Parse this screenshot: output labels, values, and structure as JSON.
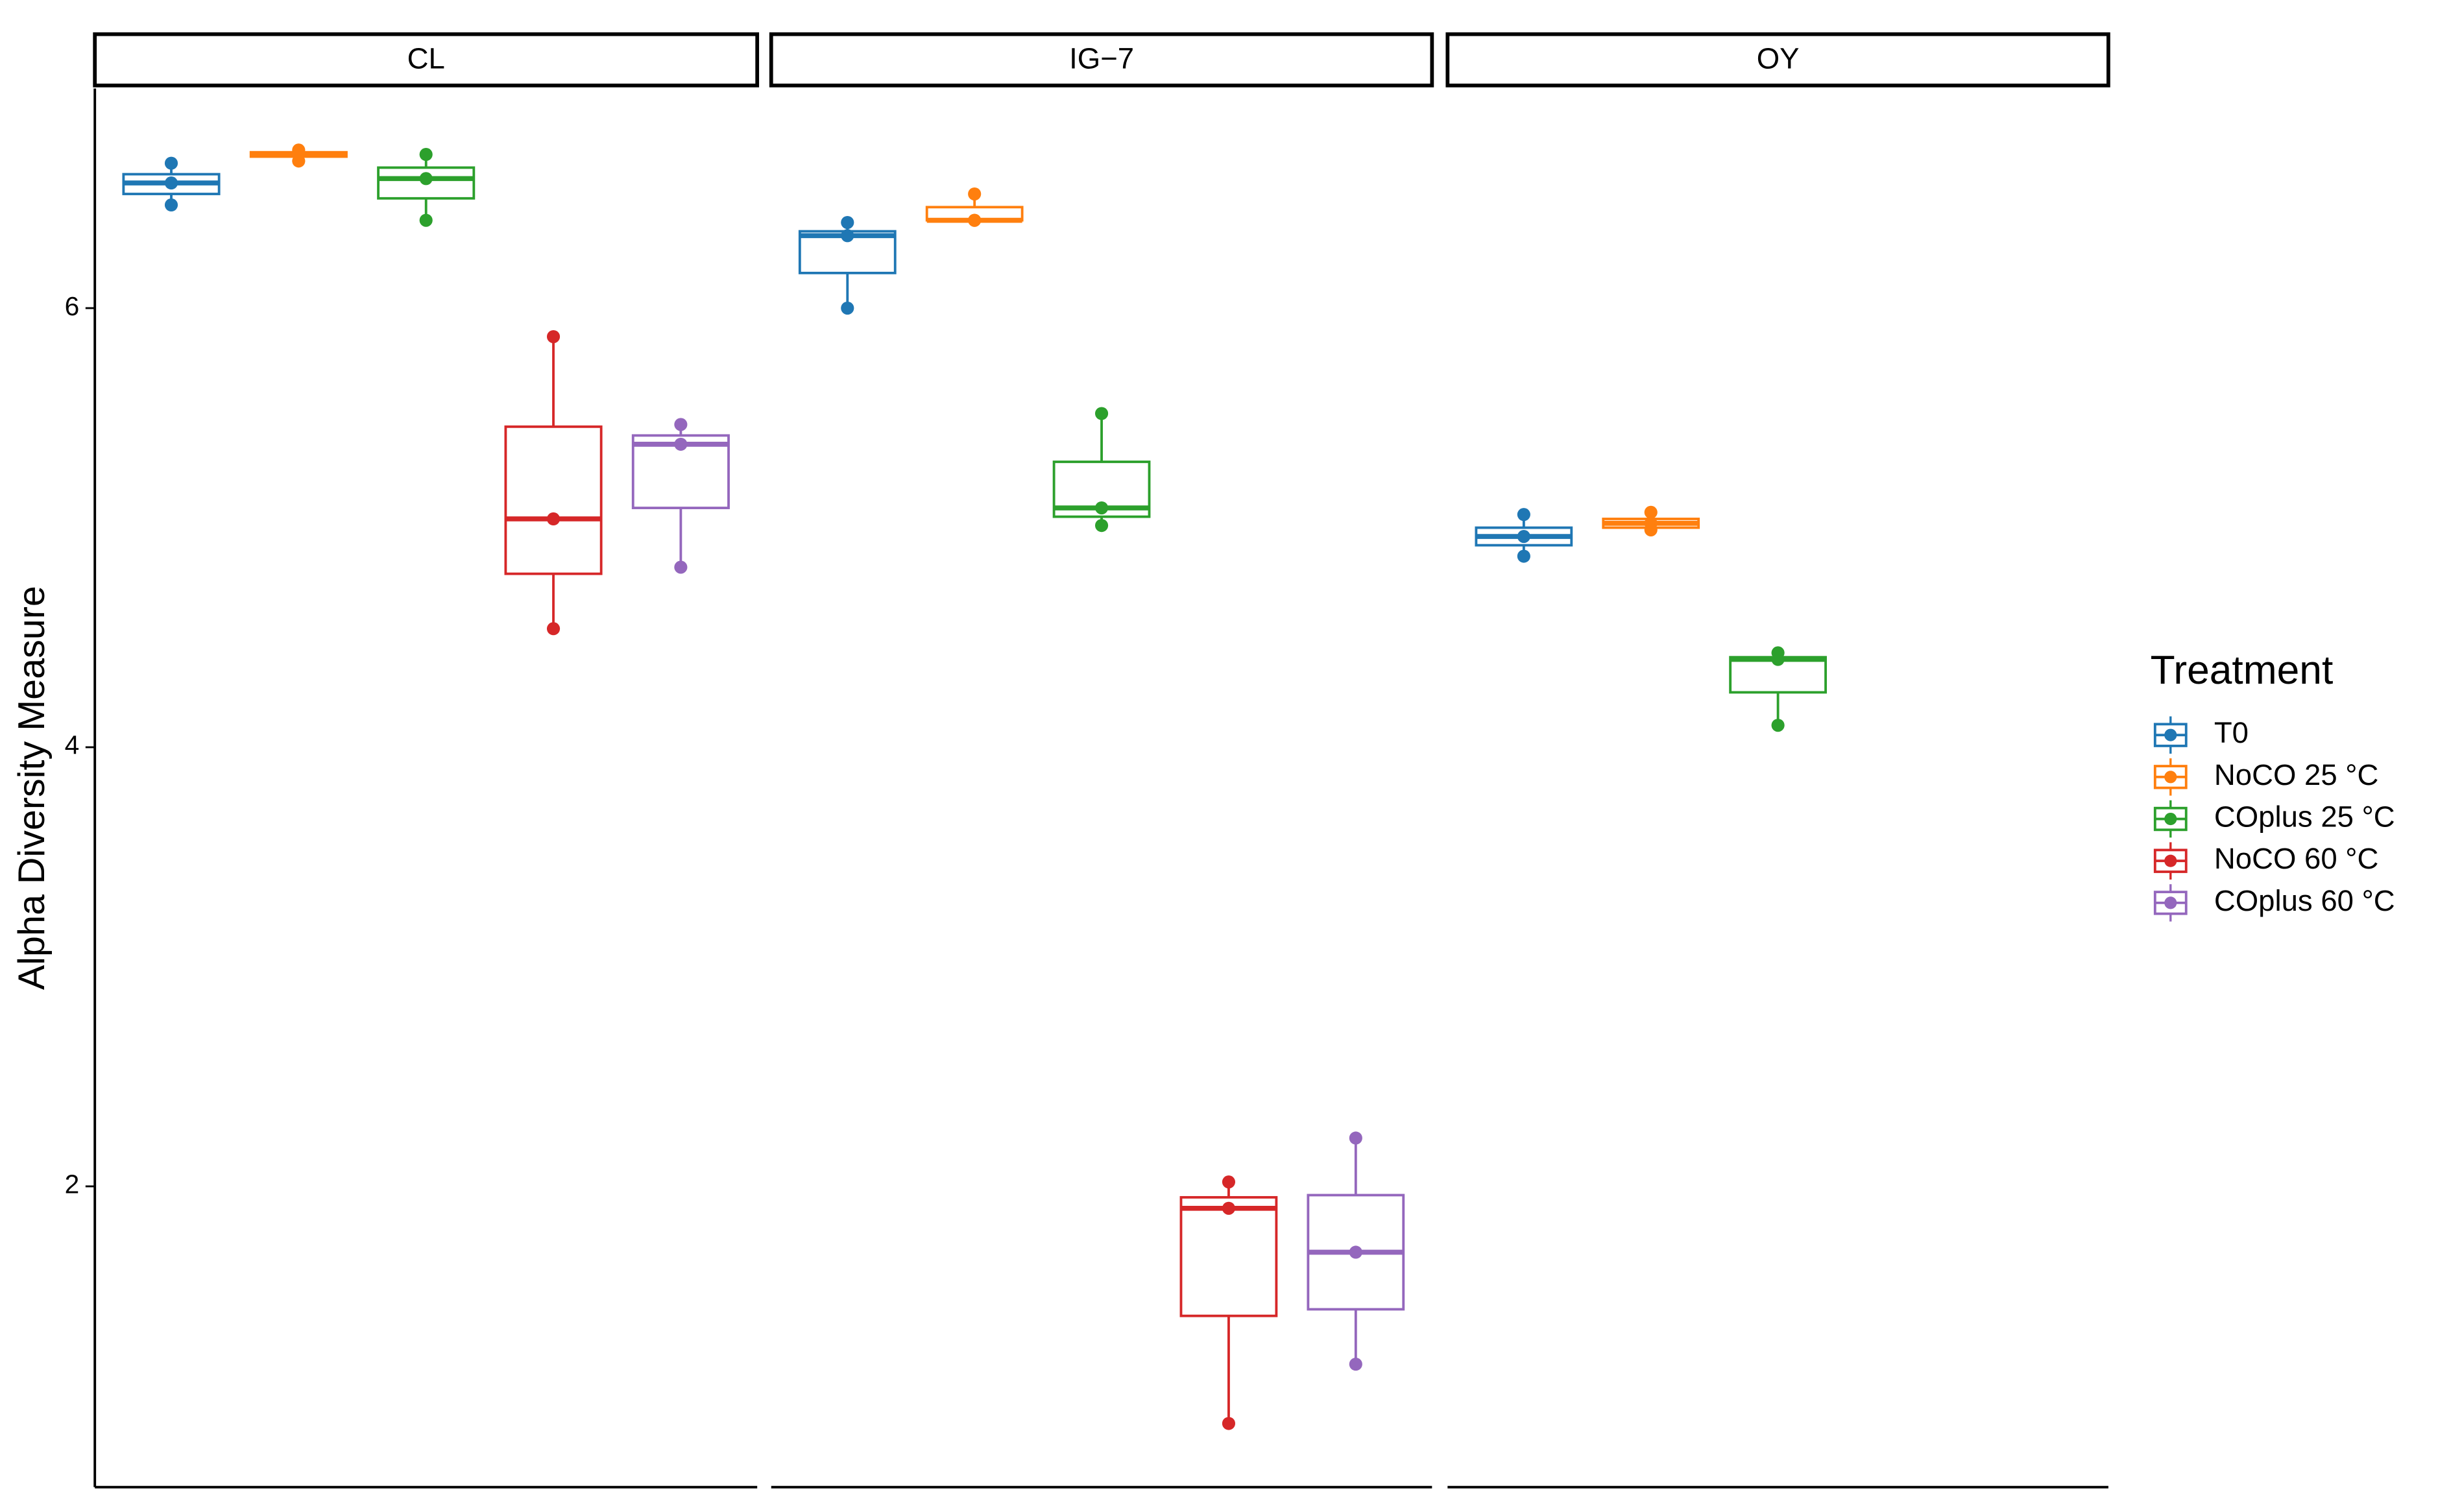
{
  "chart_data": {
    "type": "box",
    "y_label": "Alpha Diversity Measure",
    "legend_title": "Treatment",
    "legend_position": "right",
    "ylim": [
      0.63,
      7.0
    ],
    "yticks": [
      2,
      4,
      6
    ],
    "series": [
      {
        "name": "T0",
        "color": "#1f77b4"
      },
      {
        "name": "NoCO 25 °C",
        "color": "#ff7f0e"
      },
      {
        "name": "COplus 25 °C",
        "color": "#2ca02c"
      },
      {
        "name": "NoCO 60 °C",
        "color": "#d62728"
      },
      {
        "name": "COplus 60 °C",
        "color": "#9467bd"
      }
    ],
    "facets": [
      {
        "label": "CL",
        "boxes": [
          {
            "series": 0,
            "min": 6.47,
            "q1": 6.52,
            "median": 6.57,
            "q3": 6.61,
            "max": 6.66,
            "points": [
              6.66,
              6.57,
              6.47
            ]
          },
          {
            "series": 1,
            "min": 6.67,
            "q1": 6.69,
            "median": 6.7,
            "q3": 6.71,
            "max": 6.72,
            "points": [
              6.72,
              6.7,
              6.67
            ]
          },
          {
            "series": 2,
            "min": 6.4,
            "q1": 6.5,
            "median": 6.59,
            "q3": 6.64,
            "max": 6.7,
            "points": [
              6.7,
              6.59,
              6.4
            ]
          },
          {
            "series": 3,
            "min": 4.54,
            "q1": 4.79,
            "median": 5.04,
            "q3": 5.46,
            "max": 5.87,
            "points": [
              5.87,
              5.04,
              4.54
            ]
          },
          {
            "series": 4,
            "min": 4.82,
            "q1": 5.09,
            "median": 5.38,
            "q3": 5.42,
            "max": 5.47,
            "points": [
              5.47,
              5.38,
              4.82
            ]
          }
        ]
      },
      {
        "label": "IG−7",
        "boxes": [
          {
            "series": 0,
            "min": 6.0,
            "q1": 6.16,
            "median": 6.33,
            "q3": 6.35,
            "max": 6.39,
            "points": [
              6.39,
              6.33,
              6.0
            ]
          },
          {
            "series": 1,
            "min": 6.4,
            "q1": 6.4,
            "median": 6.4,
            "q3": 6.46,
            "max": 6.52,
            "points": [
              6.52,
              6.4,
              6.4
            ]
          },
          {
            "series": 2,
            "min": 5.01,
            "q1": 5.05,
            "median": 5.09,
            "q3": 5.3,
            "max": 5.52,
            "points": [
              5.52,
              5.09,
              5.01
            ]
          },
          {
            "series": 3,
            "min": 0.92,
            "q1": 1.41,
            "median": 1.9,
            "q3": 1.95,
            "max": 2.02,
            "points": [
              2.02,
              1.9,
              0.92
            ]
          },
          {
            "series": 4,
            "min": 1.19,
            "q1": 1.44,
            "median": 1.7,
            "q3": 1.96,
            "max": 2.22,
            "points": [
              2.22,
              1.7,
              1.19
            ]
          }
        ]
      },
      {
        "label": "OY",
        "boxes": [
          {
            "series": 0,
            "min": 4.87,
            "q1": 4.92,
            "median": 4.96,
            "q3": 5.0,
            "max": 5.06,
            "points": [
              5.06,
              4.96,
              4.87
            ]
          },
          {
            "series": 1,
            "min": 4.99,
            "q1": 5.0,
            "median": 5.02,
            "q3": 5.04,
            "max": 5.07,
            "points": [
              5.07,
              5.02,
              4.99
            ]
          },
          {
            "series": 2,
            "min": 4.1,
            "q1": 4.25,
            "median": 4.4,
            "q3": 4.41,
            "max": 4.43,
            "points": [
              4.43,
              4.4,
              4.1
            ]
          }
        ]
      }
    ]
  }
}
